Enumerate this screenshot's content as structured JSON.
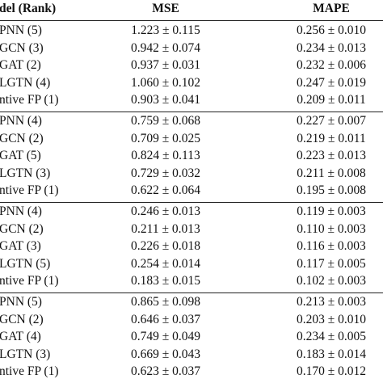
{
  "table": {
    "header": [
      "del (Rank)",
      "MSE",
      "MAPE"
    ],
    "groups": [
      [
        [
          "PNN (5)",
          "1.223 ± 0.115",
          "0.256 ± 0.010"
        ],
        [
          "GCN (3)",
          "0.942 ± 0.074",
          "0.234 ± 0.013"
        ],
        [
          "GAT (2)",
          "0.937 ± 0.031",
          "0.232 ± 0.006"
        ],
        [
          "LGTN (4)",
          "1.060 ± 0.102",
          "0.247 ± 0.019"
        ],
        [
          "ntive FP (1)",
          "0.903 ± 0.041",
          "0.209 ± 0.011"
        ]
      ],
      [
        [
          "PNN (4)",
          "0.759 ± 0.068",
          "0.227 ± 0.007"
        ],
        [
          "GCN (2)",
          "0.709 ± 0.025",
          "0.219 ± 0.011"
        ],
        [
          "GAT (5)",
          "0.824 ± 0.113",
          "0.223 ± 0.013"
        ],
        [
          "LGTN (3)",
          "0.729 ± 0.032",
          "0.211 ± 0.008"
        ],
        [
          "ntive FP (1)",
          "0.622 ± 0.064",
          "0.195 ± 0.008"
        ]
      ],
      [
        [
          "PNN (4)",
          "0.246 ± 0.013",
          "0.119 ± 0.003"
        ],
        [
          "GCN (2)",
          "0.211 ± 0.013",
          "0.110 ± 0.003"
        ],
        [
          "GAT (3)",
          "0.226 ± 0.018",
          "0.116 ± 0.003"
        ],
        [
          "LGTN (5)",
          "0.254 ± 0.014",
          "0.117 ± 0.005"
        ],
        [
          "ntive FP (1)",
          "0.183 ± 0.015",
          "0.102 ± 0.003"
        ]
      ],
      [
        [
          "PNN (5)",
          "0.865 ± 0.098",
          "0.213 ± 0.003"
        ],
        [
          "GCN (2)",
          "0.646 ± 0.037",
          "0.203 ± 0.010"
        ],
        [
          "GAT (4)",
          "0.749 ± 0.049",
          "0.234 ± 0.005"
        ],
        [
          "LGTN (3)",
          "0.669 ± 0.043",
          "0.183 ± 0.014"
        ],
        [
          "ntive FP (1)",
          "0.623 ± 0.037",
          "0.170 ± 0.012"
        ]
      ]
    ]
  }
}
